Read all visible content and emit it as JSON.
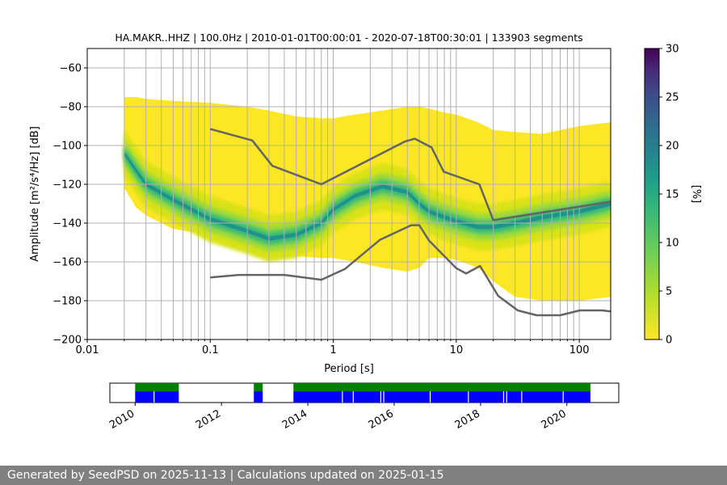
{
  "chart_data": [
    {
      "type": "heatmap",
      "title": "HA.MAKR..HHZ | 100.0Hz | 2010-01-01T00:00:01 - 2020-07-18T00:30:01 | 133903 segments",
      "xlabel": "Period [s]",
      "ylabel": "Amplitude [m²/s⁴/Hz] [dB]",
      "xscale": "log",
      "xlim": [
        0.01,
        180
      ],
      "ylim": [
        -200,
        -50
      ],
      "xticks": [
        0.01,
        0.1,
        1,
        10,
        100
      ],
      "xtick_labels": [
        "0.01",
        "0.1",
        "1",
        "10",
        "100"
      ],
      "yticks": [
        -200,
        -180,
        -160,
        -140,
        -120,
        -100,
        -80,
        -60
      ],
      "ytick_labels": [
        "−200",
        "−180",
        "−160",
        "−140",
        "−120",
        "−100",
        "−80",
        "−60"
      ],
      "grid": true,
      "colorbar": {
        "label": "[%]",
        "range": [
          0,
          30
        ],
        "ticks": [
          0,
          5,
          10,
          15,
          20,
          25,
          30
        ],
        "tick_labels": [
          "0",
          "5",
          "10",
          "15",
          "20",
          "25",
          "30"
        ],
        "colormap": "viridis_r"
      },
      "psd_envelope": {
        "periods": [
          0.02,
          0.025,
          0.03,
          0.05,
          0.1,
          0.2,
          0.3,
          0.5,
          0.8,
          1.0,
          1.5,
          2.5,
          4,
          5,
          6,
          8,
          10,
          15,
          20,
          30,
          50,
          100,
          180
        ],
        "upper_db": [
          -75,
          -75,
          -76,
          -77,
          -78,
          -80,
          -82,
          -85,
          -86,
          -86,
          -84,
          -82,
          -80,
          -80,
          -81,
          -83,
          -84,
          -88,
          -92,
          -93,
          -94,
          -90,
          -88
        ],
        "lower_db": [
          -122,
          -132,
          -136,
          -143,
          -146,
          -149,
          -153,
          -157,
          -158,
          -158,
          -160,
          -163,
          -165,
          -163,
          -158,
          -158,
          -159,
          -163,
          -170,
          -178,
          -180,
          -180,
          -178
        ],
        "mode_db": [
          -104,
          -113,
          -120,
          -128,
          -138,
          -144,
          -148,
          -146,
          -140,
          -133,
          -126,
          -121,
          -124,
          -130,
          -134,
          -137,
          -139,
          -142,
          -142,
          -140,
          -137,
          -134,
          -130
        ]
      },
      "noise_model_high": {
        "periods": [
          0.1,
          0.22,
          0.32,
          0.8,
          3.8,
          4.6,
          6.3,
          7.9,
          15.4,
          20,
          354.8
        ],
        "db": [
          -91.5,
          -97.4,
          -110.5,
          -120,
          -98,
          -96.5,
          -101,
          -113.5,
          -120,
          -138.5,
          -126
        ]
      },
      "noise_model_low": {
        "periods": [
          0.1,
          0.17,
          0.4,
          0.8,
          1.24,
          2.4,
          4.3,
          5.0,
          6.0,
          10.0,
          12.0,
          15.6,
          21.9,
          31.6,
          45,
          70,
          101,
          154,
          180
        ],
        "db": [
          -168,
          -166.7,
          -166.7,
          -169.2,
          -163.7,
          -148.6,
          -141.1,
          -141.1,
          -149,
          -163.2,
          -166,
          -162.1,
          -177.5,
          -185,
          -187.5,
          -187.5,
          -185,
          -185,
          -185.5
        ]
      }
    },
    {
      "type": "timeline",
      "xlim": [
        "2009-06-01",
        "2021-03-15"
      ],
      "xtick_labels": [
        "2010",
        "2012",
        "2014",
        "2016",
        "2018",
        "2020"
      ],
      "colors": {
        "availability": "#0000ff",
        "processed": "#008000",
        "gap": "#ffffff"
      },
      "segments": [
        [
          "2010-01-01",
          "2011-01-05"
        ],
        [
          "2012-10-01",
          "2012-12-15"
        ],
        [
          "2013-09-01",
          "2020-07-18"
        ]
      ],
      "gaps": [
        "2010-06-10",
        "2014-10-20",
        "2015-01-20",
        "2015-09-10",
        "2015-10-05",
        "2016-11-01",
        "2017-09-20",
        "2018-07-15",
        "2018-08-10",
        "2018-12-15",
        "2019-12-01"
      ]
    }
  ],
  "footer": {
    "text": "Generated by SeedPSD on 2025-11-13 | Calculations updated on 2025-01-15"
  }
}
